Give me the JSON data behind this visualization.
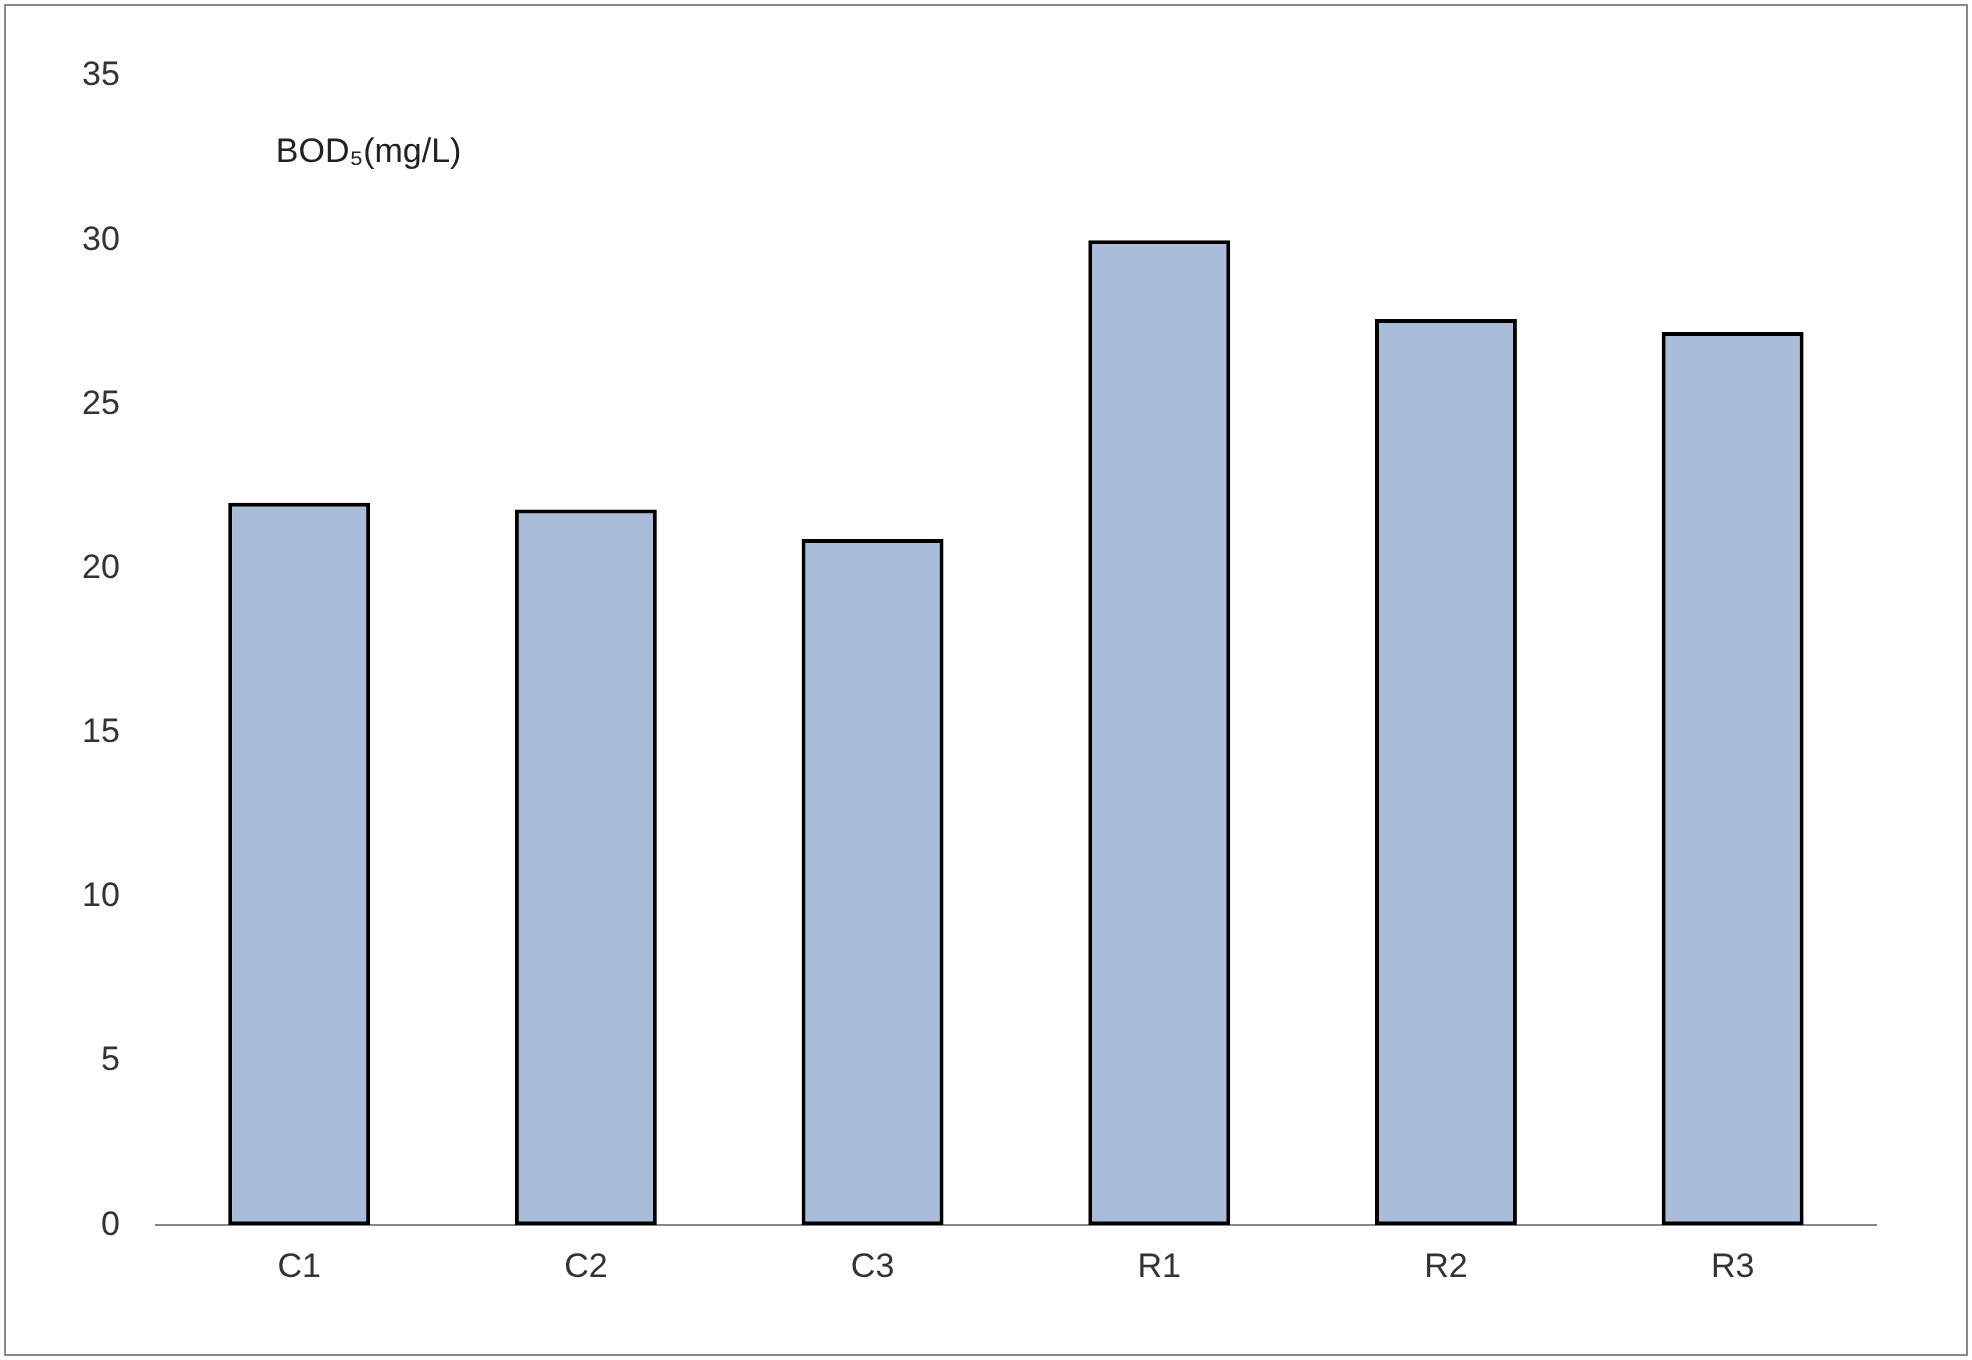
{
  "chart_data": {
    "type": "bar",
    "categories": [
      "C1",
      "C2",
      "C3",
      "R1",
      "R2",
      "R3"
    ],
    "values": [
      22.0,
      21.8,
      20.9,
      30.0,
      27.6,
      27.2
    ],
    "color": "#a9bcd9",
    "ylim": [
      0,
      35
    ],
    "yticks": [
      0,
      5,
      10,
      15,
      20,
      25,
      30,
      35
    ],
    "annotations": [
      "BOD₅(mg/L)"
    ],
    "grid": false,
    "legend": false
  }
}
